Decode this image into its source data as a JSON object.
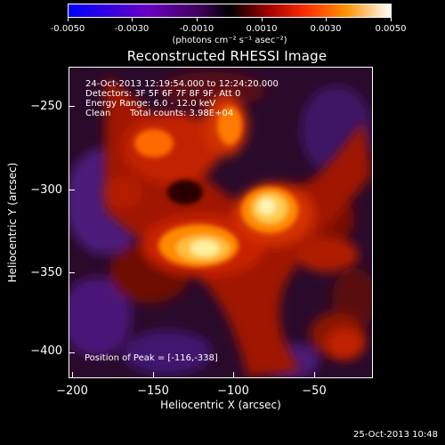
{
  "colorbar": {
    "ticks": [
      "-0.0050",
      "-0.0030",
      "-0.0010",
      "0.0010",
      "0.0030",
      "0.0050"
    ],
    "units": "(photons cm⁻² s⁻¹ asec⁻²)"
  },
  "title": "Reconstructed RHESSI Image",
  "info": {
    "time_range": "24-Oct-2013 12:19:54.000 to 12:24:20.000",
    "detectors": "Detectors: 3F 5F 6F 7F 8F 9F, Att 0",
    "energy": "Energy Range: 6.0 - 12.0 keV",
    "algorithm": "Clean",
    "counts": "Total counts: 3.98E+04"
  },
  "peak": "Position of Peak = [-116,-338]",
  "axes": {
    "xlabel": "Heliocentric X (arcsec)",
    "ylabel": "Heliocentric Y (arcsec)",
    "xticks": [
      "−200",
      "−150",
      "−100",
      "−50"
    ],
    "yticks": [
      "−250",
      "−300",
      "−350",
      "−400"
    ]
  },
  "datestamp": "25-Oct-2013 10:48"
}
